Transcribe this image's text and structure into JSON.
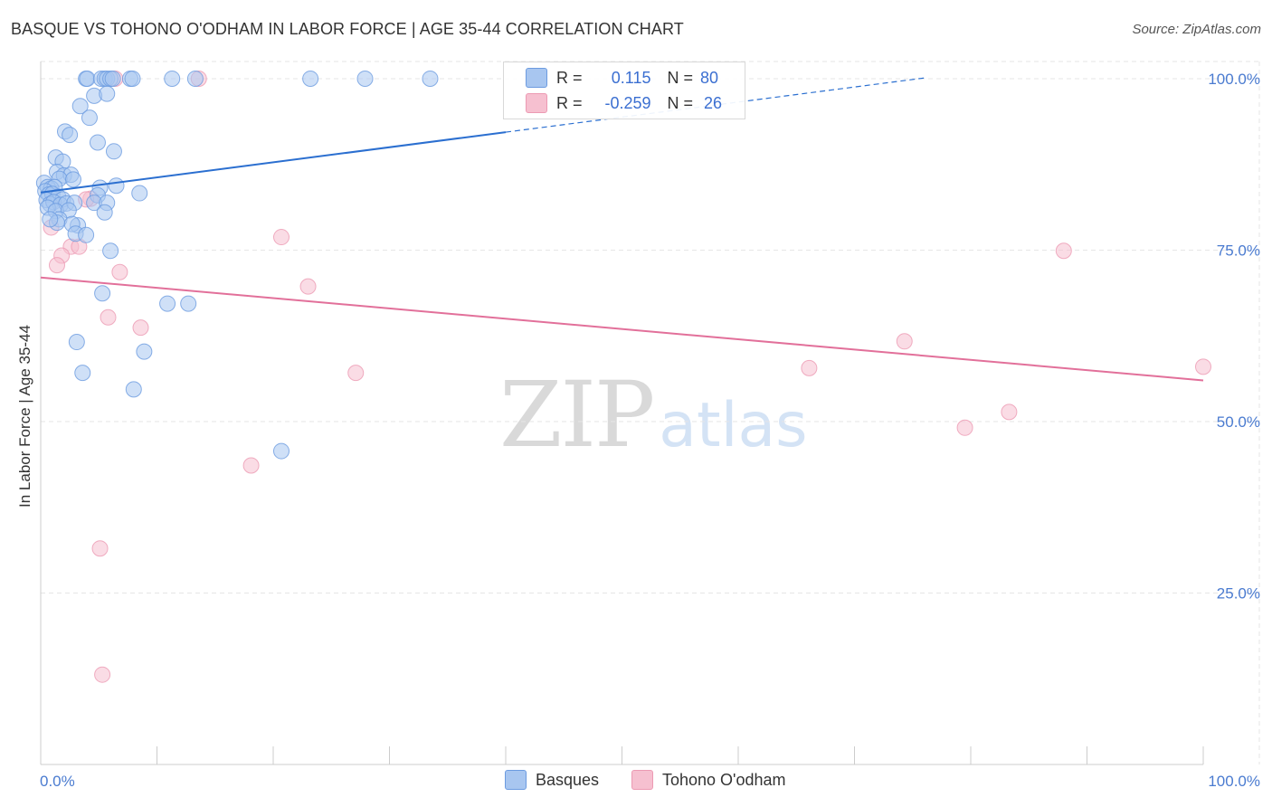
{
  "header": {
    "title": "BASQUE VS TOHONO O'ODHAM IN LABOR FORCE | AGE 35-44 CORRELATION CHART",
    "source": "Source: ZipAtlas.com"
  },
  "watermark": {
    "zip": "ZIP",
    "atlas": "atlas"
  },
  "legend": {
    "rows": [
      {
        "r_label": "R =",
        "r_value": "0.115",
        "n_label": "N =",
        "n_value": "80"
      },
      {
        "r_label": "R =",
        "r_value": "-0.259",
        "n_label": "N =",
        "n_value": "26"
      }
    ]
  },
  "bottom_legend": {
    "series0": "Basques",
    "series1": "Tohono O'odham"
  },
  "colors": {
    "series0_fill": "#a8c6f0",
    "series0_stroke": "#6c9be0",
    "series0_line": "#2b6fd0",
    "series1_fill": "#f6c0d0",
    "series1_stroke": "#ec9ab3",
    "series1_line": "#e2709a",
    "tick_text": "#4a7bd0",
    "grid": "#e6e6e6"
  },
  "chart_data": {
    "type": "scatter",
    "title": "BASQUE VS TOHONO O'ODHAM IN LABOR FORCE | AGE 35-44 CORRELATION CHART",
    "xlabel": "",
    "ylabel": "In Labor Force | Age 35-44",
    "xlim": [
      0,
      100
    ],
    "ylim": [
      0,
      102.5
    ],
    "x_tick_labels": [
      "0.0%",
      "100.0%"
    ],
    "y_ticks": [
      25,
      50,
      75,
      100
    ],
    "y_tick_labels": [
      "25.0%",
      "50.0%",
      "75.0%",
      "100.0%"
    ],
    "grid": true,
    "series": [
      {
        "name": "Basques",
        "R": 0.115,
        "N": 80,
        "trend": {
          "x0": 0,
          "y0": 83.4,
          "x1": 40,
          "y1": 92.2,
          "dashed_to_x": 76,
          "dashed_to_y": 100.1
        },
        "points": [
          [
            3.9,
            100
          ],
          [
            4.0,
            100
          ],
          [
            5.2,
            100
          ],
          [
            5.5,
            100
          ],
          [
            5.7,
            100
          ],
          [
            6.0,
            100
          ],
          [
            6.2,
            100
          ],
          [
            7.7,
            100
          ],
          [
            7.9,
            100
          ],
          [
            11.3,
            100
          ],
          [
            13.3,
            100
          ],
          [
            23.2,
            100
          ],
          [
            27.9,
            100
          ],
          [
            33.5,
            100
          ],
          [
            4.6,
            97.5
          ],
          [
            5.7,
            97.8
          ],
          [
            3.4,
            96
          ],
          [
            4.2,
            94.3
          ],
          [
            2.1,
            92.3
          ],
          [
            2.5,
            91.8
          ],
          [
            4.9,
            90.7
          ],
          [
            6.3,
            89.4
          ],
          [
            1.3,
            88.5
          ],
          [
            1.9,
            87.9
          ],
          [
            1.4,
            86.4
          ],
          [
            2.0,
            85.9
          ],
          [
            2.6,
            86.0
          ],
          [
            1.6,
            85.4
          ],
          [
            2.8,
            85.3
          ],
          [
            0.3,
            84.8
          ],
          [
            0.6,
            84.2
          ],
          [
            0.9,
            84.0
          ],
          [
            1.2,
            84.2
          ],
          [
            5.1,
            84.1
          ],
          [
            6.5,
            84.4
          ],
          [
            8.5,
            83.3
          ],
          [
            0.4,
            83.6
          ],
          [
            0.7,
            83.1
          ],
          [
            1.0,
            83.2
          ],
          [
            1.5,
            82.8
          ],
          [
            1.9,
            82.4
          ],
          [
            4.9,
            83.0
          ],
          [
            0.5,
            82.3
          ],
          [
            0.8,
            81.7
          ],
          [
            1.1,
            82.0
          ],
          [
            1.7,
            81.6
          ],
          [
            2.2,
            81.8
          ],
          [
            2.9,
            81.9
          ],
          [
            4.6,
            81.9
          ],
          [
            5.7,
            81.9
          ],
          [
            0.6,
            81.2
          ],
          [
            1.3,
            80.7
          ],
          [
            2.4,
            80.8
          ],
          [
            5.5,
            80.5
          ],
          [
            1.6,
            79.5
          ],
          [
            1.4,
            79.0
          ],
          [
            0.8,
            79.5
          ],
          [
            3.2,
            78.6
          ],
          [
            2.7,
            78.8
          ],
          [
            3.0,
            77.4
          ],
          [
            3.9,
            77.2
          ],
          [
            6.0,
            74.9
          ],
          [
            5.3,
            68.7
          ],
          [
            10.9,
            67.2
          ],
          [
            12.7,
            67.2
          ],
          [
            3.1,
            61.6
          ],
          [
            8.9,
            60.2
          ],
          [
            3.6,
            57.1
          ],
          [
            8.0,
            54.7
          ],
          [
            20.7,
            45.7
          ]
        ]
      },
      {
        "name": "Tohono O'odham",
        "R": -0.259,
        "N": 26,
        "trend": {
          "x0": 0,
          "y0": 71.0,
          "x1": 100,
          "y1": 56.0
        },
        "points": [
          [
            6.4,
            100
          ],
          [
            13.6,
            100
          ],
          [
            4.3,
            82.5
          ],
          [
            3.9,
            82.4
          ],
          [
            0.9,
            78.3
          ],
          [
            2.6,
            75.5
          ],
          [
            3.3,
            75.5
          ],
          [
            1.8,
            74.2
          ],
          [
            1.4,
            72.8
          ],
          [
            20.7,
            76.9
          ],
          [
            6.8,
            71.8
          ],
          [
            23.0,
            69.7
          ],
          [
            5.8,
            65.2
          ],
          [
            8.6,
            63.7
          ],
          [
            27.1,
            57.1
          ],
          [
            66.1,
            57.8
          ],
          [
            74.3,
            61.7
          ],
          [
            88.0,
            74.9
          ],
          [
            100,
            58.0
          ],
          [
            83.3,
            51.4
          ],
          [
            79.5,
            49.1
          ],
          [
            18.1,
            43.6
          ],
          [
            5.1,
            31.5
          ],
          [
            5.3,
            13.1
          ]
        ]
      }
    ]
  }
}
